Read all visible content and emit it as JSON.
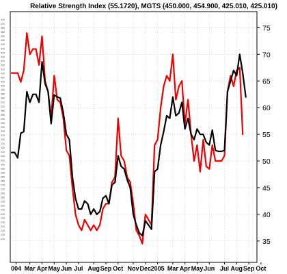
{
  "chart_data": {
    "type": "line",
    "title": "Relative Strength Index (55.1720), MGTS (450.000, 454.900, 425.010, 425.010)",
    "xlabel": "",
    "ylabel": "",
    "ylim": [
      31,
      78
    ],
    "y_ticks": [
      35,
      40,
      45,
      50,
      55,
      60,
      65,
      70,
      75
    ],
    "grid": true,
    "x_tick_labels": [
      "004",
      "Mar",
      "Apr",
      "May",
      "Jun",
      "Jul",
      "Aug",
      "Sep",
      "Oct",
      "Nov",
      "Dec",
      "2005",
      "Mar",
      "Apr",
      "May",
      "Jun",
      "Jul",
      "Aug",
      "Sep",
      "Oct"
    ],
    "x_tick_positions": [
      1.5,
      6,
      10,
      14,
      18,
      22,
      27,
      31,
      35,
      40,
      44,
      48,
      53,
      57,
      61,
      65,
      70,
      74,
      78,
      82
    ],
    "left_axis_labels": [
      "475",
      "470",
      "465",
      "460",
      "455",
      "450",
      "445",
      "440",
      "435",
      "430",
      "425",
      "420",
      "415",
      "410",
      "405",
      "400",
      "395",
      "390",
      "385",
      "380",
      "375",
      "370",
      "365",
      "360",
      "355",
      "350",
      "345",
      "340",
      "335",
      "330",
      "325",
      "320",
      "315",
      "310",
      "305",
      "300",
      "295",
      "290",
      "285",
      "280",
      "275",
      "270",
      "265",
      "260",
      "255",
      "250",
      "245",
      "240",
      "235",
      "230",
      "225",
      "220",
      "215",
      "210"
    ],
    "series": [
      {
        "color": "#000000",
        "values": [
          51.6,
          51.6,
          50.6,
          55.2,
          55.5,
          63.0,
          61.0,
          62.5,
          62.5,
          61.0,
          68.6,
          64.5,
          63.0,
          57.0,
          62.4,
          62.0,
          61.8,
          59.0,
          55.0,
          54.0,
          47.0,
          43.0,
          41.0,
          41.0,
          42.5,
          42.0,
          40.0,
          41.0,
          40.0,
          40.5,
          43.0,
          43.5,
          42.0,
          45.5,
          46.0,
          51.0,
          49.0,
          48.5,
          46.5,
          45.0,
          40.0,
          38.0,
          36.5,
          36.0,
          38.8,
          38.0,
          37.2,
          48.0,
          48.5,
          53.0,
          55.5,
          58.5,
          58.0,
          62.0,
          58.5,
          59.0,
          61.0,
          56.0,
          58.0,
          55.0,
          54.0,
          56.0,
          55.0,
          55.0,
          53.5,
          53.0,
          55.8,
          52.0,
          51.8,
          51.8,
          52.0,
          63.0,
          65.0,
          67.0,
          66.0,
          70.0,
          66.5,
          62.0
        ]
      },
      {
        "color": "#ee0000",
        "values": [
          66.5,
          66.5,
          66.5,
          64.8,
          67.0,
          74.0,
          70.0,
          71.0,
          71.0,
          68.0,
          73.4,
          65.0,
          63.0,
          58.0,
          66.0,
          61.5,
          61.0,
          58.0,
          52.0,
          51.0,
          45.0,
          40.0,
          38.0,
          37.0,
          39.0,
          38.0,
          37.0,
          38.0,
          37.0,
          38.0,
          41.0,
          42.0,
          42.0,
          46.0,
          47.0,
          58.0,
          51.0,
          50.0,
          47.0,
          46.0,
          42.0,
          37.0,
          36.0,
          34.5,
          40.0,
          39.0,
          38.0,
          53.0,
          54.0,
          60.0,
          64.0,
          66.0,
          65.0,
          70.0,
          61.5,
          64.0,
          65.0,
          57.0,
          61.5,
          55.0,
          50.0,
          53.0,
          48.0,
          54.0,
          49.0,
          48.5,
          53.0,
          50.0,
          50.0,
          50.0,
          51.0,
          63.0,
          66.0,
          64.0,
          67.0,
          67.5,
          55.0
        ]
      }
    ]
  }
}
